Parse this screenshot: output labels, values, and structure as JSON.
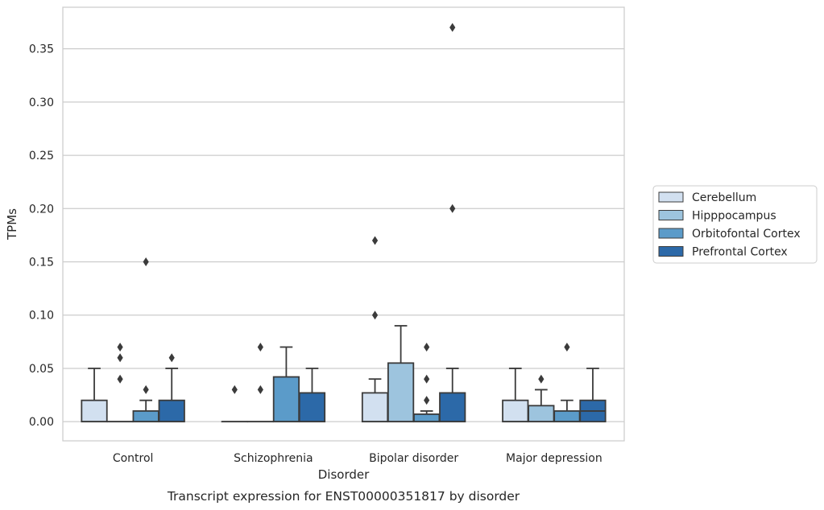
{
  "caption": "Transcript expression for ENST00000351817 by disorder",
  "chart_data": {
    "type": "box",
    "title": "",
    "xlabel": "Disorder",
    "ylabel": "TPMs",
    "ylim": [
      -0.018,
      0.389
    ],
    "yticks": [
      0.0,
      0.05,
      0.1,
      0.15,
      0.2,
      0.25,
      0.3,
      0.35
    ],
    "ytick_labels": [
      "0.00",
      "0.05",
      "0.10",
      "0.15",
      "0.20",
      "0.25",
      "0.30",
      "0.35"
    ],
    "grid": "horizontal",
    "legend_position": "right",
    "categories": [
      "Control",
      "Schizophrenia",
      "Bipolar disorder",
      "Major depression"
    ],
    "series": [
      {
        "name": "Cerebellum",
        "color": "#d2e0f0",
        "boxes": [
          {
            "q1": 0.0,
            "median": 0.0,
            "q3": 0.02,
            "whislo": 0.0,
            "whishi": 0.05,
            "fliers": []
          },
          {
            "q1": 0.0,
            "median": 0.0,
            "q3": 0.0,
            "whislo": 0.0,
            "whishi": 0.0,
            "fliers": [
              0.03
            ]
          },
          {
            "q1": 0.0,
            "median": 0.0,
            "q3": 0.027,
            "whislo": 0.0,
            "whishi": 0.04,
            "fliers": [
              0.1,
              0.17
            ]
          },
          {
            "q1": 0.0,
            "median": 0.0,
            "q3": 0.02,
            "whislo": 0.0,
            "whishi": 0.05,
            "fliers": []
          }
        ]
      },
      {
        "name": "Hipppocampus",
        "color": "#9dc4de",
        "boxes": [
          {
            "q1": 0.0,
            "median": 0.0,
            "q3": 0.0,
            "whislo": 0.0,
            "whishi": 0.0,
            "fliers": [
              0.04,
              0.06,
              0.07
            ]
          },
          {
            "q1": 0.0,
            "median": 0.0,
            "q3": 0.0,
            "whislo": 0.0,
            "whishi": 0.0,
            "fliers": [
              0.03,
              0.07
            ]
          },
          {
            "q1": 0.0,
            "median": 0.0,
            "q3": 0.055,
            "whislo": 0.0,
            "whishi": 0.09,
            "fliers": []
          },
          {
            "q1": 0.0,
            "median": 0.0,
            "q3": 0.015,
            "whislo": 0.0,
            "whishi": 0.03,
            "fliers": [
              0.04
            ]
          }
        ]
      },
      {
        "name": "Orbitofontal Cortex",
        "color": "#5b9bc9",
        "boxes": [
          {
            "q1": 0.0,
            "median": 0.0,
            "q3": 0.01,
            "whislo": 0.0,
            "whishi": 0.02,
            "fliers": [
              0.03,
              0.15
            ]
          },
          {
            "q1": 0.0,
            "median": 0.0,
            "q3": 0.042,
            "whislo": 0.0,
            "whishi": 0.07,
            "fliers": []
          },
          {
            "q1": 0.0,
            "median": 0.0,
            "q3": 0.007,
            "whislo": 0.0,
            "whishi": 0.01,
            "fliers": [
              0.02,
              0.04,
              0.07
            ]
          },
          {
            "q1": 0.0,
            "median": 0.0,
            "q3": 0.01,
            "whislo": 0.0,
            "whishi": 0.02,
            "fliers": [
              0.07
            ]
          }
        ]
      },
      {
        "name": "Prefrontal Cortex",
        "color": "#2c69a8",
        "boxes": [
          {
            "q1": 0.0,
            "median": 0.0,
            "q3": 0.02,
            "whislo": 0.0,
            "whishi": 0.05,
            "fliers": [
              0.06
            ]
          },
          {
            "q1": 0.0,
            "median": 0.0,
            "q3": 0.027,
            "whislo": 0.0,
            "whishi": 0.05,
            "fliers": []
          },
          {
            "q1": 0.0,
            "median": 0.0,
            "q3": 0.027,
            "whislo": 0.0,
            "whishi": 0.05,
            "fliers": [
              0.2,
              0.37
            ]
          },
          {
            "q1": 0.0,
            "median": 0.01,
            "q3": 0.02,
            "whislo": 0.0,
            "whishi": 0.05,
            "fliers": []
          }
        ]
      }
    ]
  }
}
